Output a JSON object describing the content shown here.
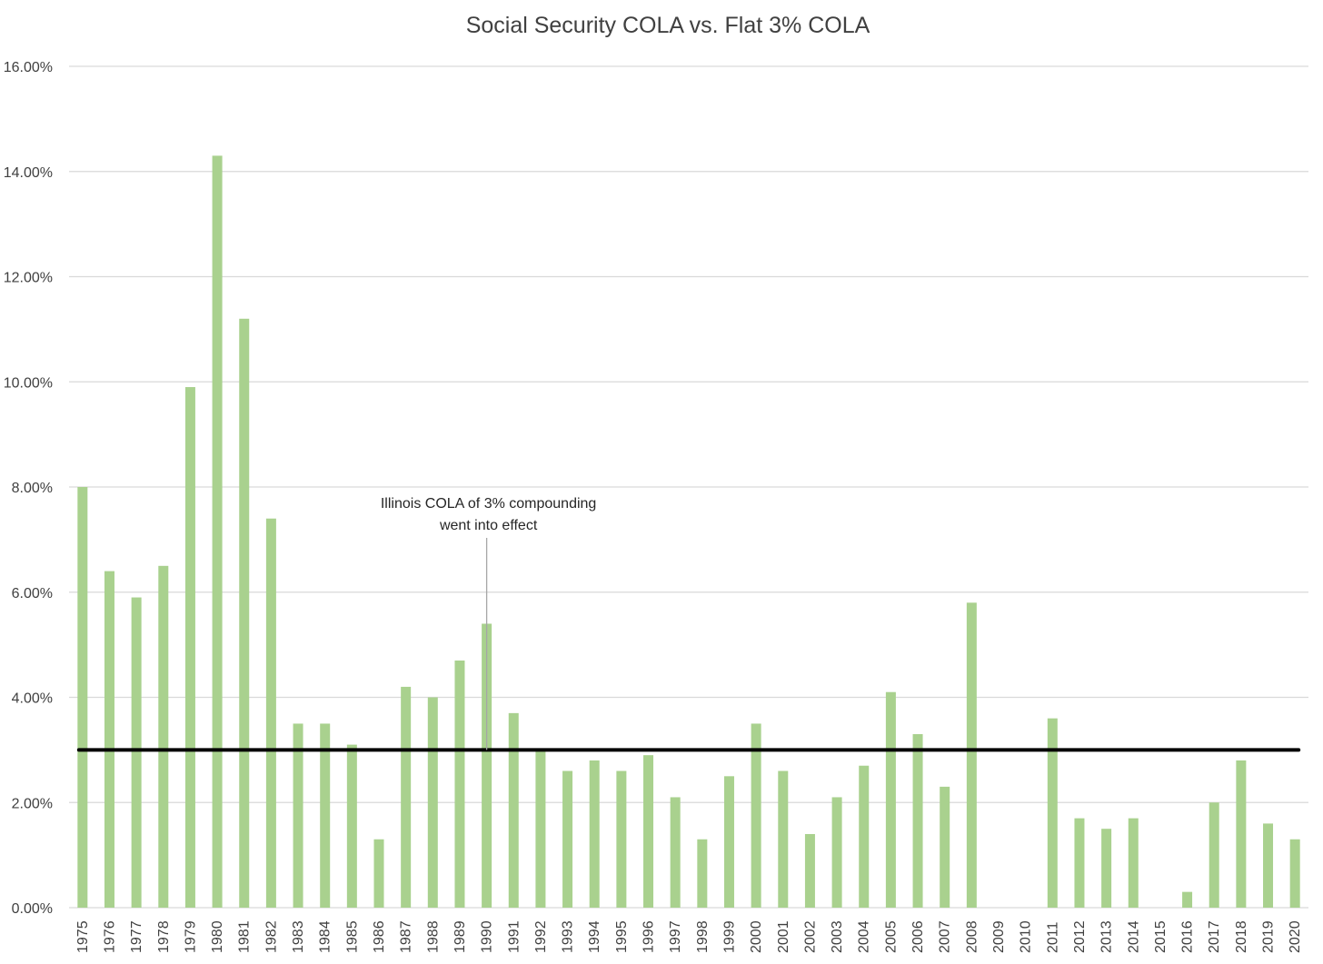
{
  "chart_data": {
    "type": "bar",
    "title": "Social Security COLA vs. Flat 3% COLA",
    "xlabel": "",
    "ylabel": "",
    "ylim": [
      0,
      16
    ],
    "y_ticks": [
      "0.00%",
      "2.00%",
      "4.00%",
      "6.00%",
      "8.00%",
      "10.00%",
      "12.00%",
      "14.00%",
      "16.00%"
    ],
    "y_tick_values": [
      0,
      2,
      4,
      6,
      8,
      10,
      12,
      14,
      16
    ],
    "grid": true,
    "legend": "none",
    "categories": [
      "1975",
      "1976",
      "1977",
      "1978",
      "1979",
      "1980",
      "1981",
      "1982",
      "1983",
      "1984",
      "1985",
      "1986",
      "1987",
      "1988",
      "1989",
      "1990",
      "1991",
      "1992",
      "1993",
      "1994",
      "1995",
      "1996",
      "1997",
      "1998",
      "1999",
      "2000",
      "2001",
      "2002",
      "2003",
      "2004",
      "2005",
      "2006",
      "2007",
      "2008",
      "2009",
      "2010",
      "2011",
      "2012",
      "2013",
      "2014",
      "2015",
      "2016",
      "2017",
      "2018",
      "2019",
      "2020"
    ],
    "series": [
      {
        "type": "bar",
        "values": [
          8.0,
          6.4,
          5.9,
          6.5,
          9.9,
          14.3,
          11.2,
          7.4,
          3.5,
          3.5,
          3.1,
          1.3,
          4.2,
          4.0,
          4.7,
          5.4,
          3.7,
          3.0,
          2.6,
          2.8,
          2.6,
          2.9,
          2.1,
          1.3,
          2.5,
          3.5,
          2.6,
          1.4,
          2.1,
          2.7,
          4.1,
          3.3,
          2.3,
          5.8,
          0.0,
          0.0,
          3.6,
          1.7,
          1.5,
          1.7,
          0.0,
          0.3,
          2.0,
          2.8,
          1.6,
          1.3
        ]
      },
      {
        "type": "line",
        "values": [
          3,
          3,
          3,
          3,
          3,
          3,
          3,
          3,
          3,
          3,
          3,
          3,
          3,
          3,
          3,
          3,
          3,
          3,
          3,
          3,
          3,
          3,
          3,
          3,
          3,
          3,
          3,
          3,
          3,
          3,
          3,
          3,
          3,
          3,
          3,
          3,
          3,
          3,
          3,
          3,
          3,
          3,
          3,
          3,
          3,
          3
        ]
      }
    ],
    "annotation": {
      "lines": [
        "Illinois COLA of 3% compounding",
        "went into effect"
      ],
      "category": "1990",
      "y": 3.0
    },
    "colors": {
      "bar_fill": "#a9d18e",
      "line": "#000000",
      "grid": "#d9d9d9",
      "axis_text": "#404040",
      "leader_line": "#a6a6a6"
    }
  }
}
